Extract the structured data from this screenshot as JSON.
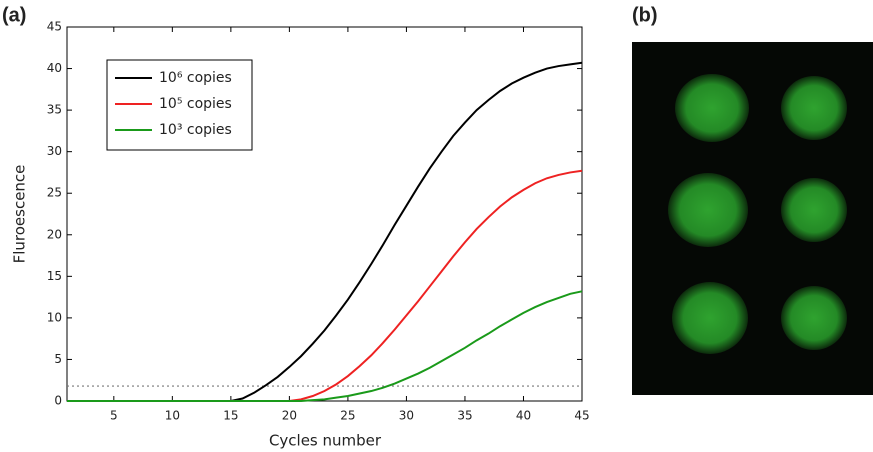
{
  "panel_labels": [
    "(a)",
    "(b)"
  ],
  "chart_data": {
    "type": "line",
    "x_label": "Cycles number",
    "y_label": "Fluroescence",
    "x": [
      1,
      5,
      10,
      14,
      15,
      16,
      17,
      18,
      19,
      20,
      21,
      22,
      23,
      24,
      25,
      26,
      27,
      28,
      29,
      30,
      31,
      32,
      33,
      34,
      35,
      36,
      37,
      38,
      39,
      40,
      41,
      42,
      43,
      44,
      45
    ],
    "series": [
      {
        "name": "10⁶ copies",
        "color": "#000000",
        "values": [
          0,
          0,
          0,
          0,
          0,
          0.3,
          1.0,
          1.9,
          2.9,
          4.1,
          5.4,
          6.9,
          8.5,
          10.3,
          12.2,
          14.3,
          16.5,
          18.8,
          21.2,
          23.5,
          25.8,
          28.0,
          30.0,
          31.9,
          33.5,
          35.0,
          36.2,
          37.3,
          38.2,
          38.9,
          39.5,
          40.0,
          40.3,
          40.5,
          40.7
        ]
      },
      {
        "name": "10⁵ copies",
        "color": "#ee2222",
        "values": [
          0,
          0,
          0,
          0,
          0,
          0,
          0,
          0,
          0,
          0,
          0.2,
          0.6,
          1.2,
          2.0,
          3.0,
          4.2,
          5.5,
          7.0,
          8.6,
          10.3,
          12.0,
          13.8,
          15.6,
          17.4,
          19.1,
          20.7,
          22.1,
          23.4,
          24.5,
          25.4,
          26.2,
          26.8,
          27.2,
          27.5,
          27.7
        ]
      },
      {
        "name": "10³ copies",
        "color": "#1a9a1a",
        "values": [
          0,
          0,
          0,
          0,
          0,
          0,
          0,
          0,
          0,
          0,
          0,
          0.1,
          0.2,
          0.4,
          0.6,
          0.9,
          1.2,
          1.6,
          2.1,
          2.7,
          3.3,
          4.0,
          4.8,
          5.6,
          6.4,
          7.3,
          8.1,
          9.0,
          9.8,
          10.6,
          11.3,
          11.9,
          12.4,
          12.9,
          13.2
        ]
      }
    ],
    "threshold": 1.8,
    "xlim": [
      1,
      45
    ],
    "xticks": [
      5,
      10,
      15,
      20,
      25,
      30,
      35,
      40,
      45
    ],
    "ylim": [
      0,
      45
    ],
    "yticks": [
      0,
      5,
      10,
      15,
      20,
      25,
      30,
      35,
      40,
      45
    ],
    "legend": "upper left"
  }
}
